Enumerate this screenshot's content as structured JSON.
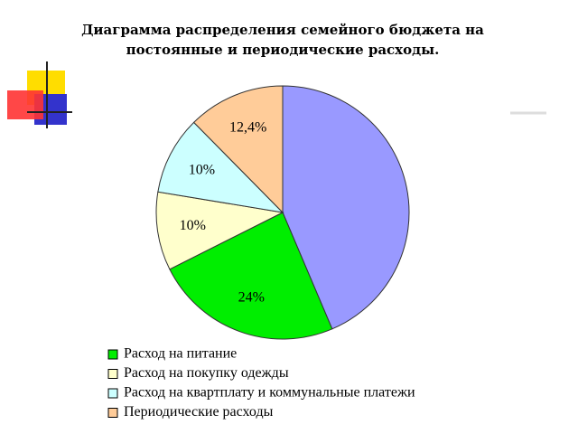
{
  "chart_data": {
    "type": "pie",
    "title": [
      "Диаграмма распределения семейного бюджета на",
      "постоянные и периодические расходы."
    ],
    "categories": [
      null,
      "Расход на питание",
      "Расход на покупку одежды",
      "Расход на квартплату и коммунальные платежи",
      "Периодические расходы"
    ],
    "values": [
      43.6,
      24,
      10,
      10,
      12.4
    ],
    "value_labels": [
      null,
      "24%",
      "10%",
      "10%",
      "12,4%"
    ],
    "colors": [
      "#9999ff",
      "#00ee00",
      "#ffffcc",
      "#ccffff",
      "#ffcc99"
    ]
  }
}
